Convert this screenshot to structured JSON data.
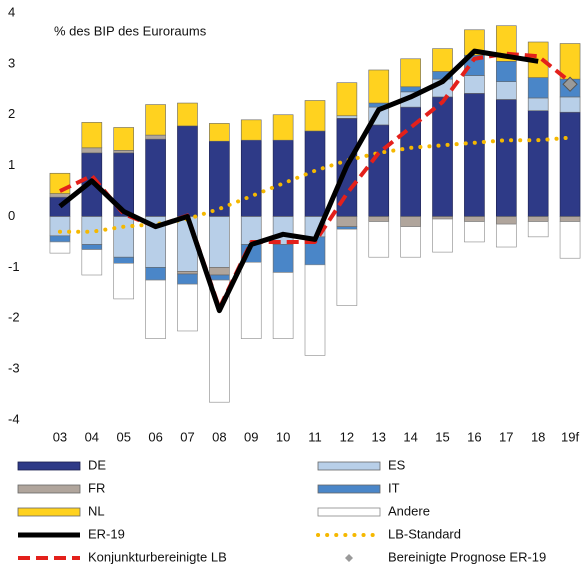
{
  "chart_data": {
    "type": "bar",
    "annotation": "% des BIP des Euroraums",
    "categories": [
      "03",
      "04",
      "05",
      "06",
      "07",
      "08",
      "09",
      "10",
      "11",
      "12",
      "13",
      "14",
      "15",
      "16",
      "17",
      "18",
      "19f"
    ],
    "ylim": [
      -4,
      4
    ],
    "yticks": [
      -4,
      -3,
      -2,
      -1,
      0,
      1,
      2,
      3,
      4
    ],
    "series": [
      {
        "name": "DE",
        "type": "bar",
        "color": "#2e3a87",
        "values": [
          0.38,
          1.25,
          1.25,
          1.52,
          1.78,
          1.48,
          1.5,
          1.5,
          1.68,
          1.93,
          1.8,
          2.15,
          2.35,
          2.42,
          2.3,
          2.08,
          2.05
        ]
      },
      {
        "name": "ES",
        "type": "bar",
        "color": "#b8cfe8",
        "values": [
          -0.38,
          -0.55,
          -0.8,
          -1.0,
          -1.08,
          -1.0,
          -0.55,
          -0.55,
          -0.4,
          0.05,
          0.35,
          0.3,
          0.35,
          0.35,
          0.35,
          0.25,
          0.3
        ]
      },
      {
        "name": "FR",
        "type": "bar",
        "color": "#b0a59c",
        "values": [
          0.07,
          0.1,
          0.05,
          0.08,
          -0.05,
          -0.15,
          0,
          0,
          0,
          -0.2,
          -0.1,
          -0.2,
          -0.05,
          -0.1,
          -0.15,
          -0.1,
          -0.1
        ]
      },
      {
        "name": "IT",
        "type": "bar",
        "color": "#4a86c8",
        "values": [
          -0.12,
          -0.1,
          -0.12,
          -0.25,
          -0.2,
          -0.1,
          -0.35,
          -0.55,
          -0.55,
          -0.05,
          0.08,
          0.1,
          0.15,
          0.4,
          0.4,
          0.4,
          0.35
        ]
      },
      {
        "name": "NL",
        "type": "bar",
        "color": "#ffd21f",
        "values": [
          0.4,
          0.5,
          0.45,
          0.6,
          0.45,
          0.35,
          0.4,
          0.5,
          0.6,
          0.65,
          0.65,
          0.55,
          0.45,
          0.5,
          0.7,
          0.7,
          0.7
        ]
      },
      {
        "name": "Andere",
        "type": "bar",
        "color": "#ffffff",
        "values": [
          -0.22,
          -0.5,
          -0.7,
          -1.15,
          -0.92,
          -2.4,
          -1.5,
          -1.3,
          -1.78,
          -1.5,
          -0.7,
          -0.6,
          -0.65,
          -0.4,
          -0.45,
          -0.3,
          -0.72
        ]
      },
      {
        "name": "ER-19",
        "type": "line",
        "color": "#000000",
        "values": [
          0.2,
          0.7,
          0.1,
          -0.2,
          0.0,
          -1.85,
          -0.55,
          -0.35,
          -0.45,
          1.0,
          2.1,
          2.35,
          2.65,
          3.25,
          3.15,
          3.05,
          null
        ]
      },
      {
        "name": "LB-Standard",
        "type": "dotted",
        "color": "#f5b800",
        "values": [
          -0.3,
          -0.3,
          -0.2,
          -0.15,
          -0.05,
          0.15,
          0.4,
          0.65,
          0.9,
          1.1,
          1.25,
          1.35,
          1.4,
          1.45,
          1.5,
          1.5,
          1.55
        ]
      },
      {
        "name": "Konjunkturbereinigte LB",
        "type": "dashed",
        "color": "#e3201b",
        "values": [
          0.5,
          0.8,
          0.05,
          -0.2,
          0.02,
          -1.8,
          -0.5,
          -0.5,
          -0.5,
          0.45,
          1.25,
          1.75,
          2.25,
          3.1,
          3.2,
          3.15,
          2.65
        ]
      },
      {
        "name": "Bereinigte Prognose ER-19",
        "type": "marker",
        "color": "#9a9a9a",
        "values": [
          null,
          null,
          null,
          null,
          null,
          null,
          null,
          null,
          null,
          null,
          null,
          null,
          null,
          null,
          null,
          null,
          2.6
        ]
      }
    ]
  }
}
